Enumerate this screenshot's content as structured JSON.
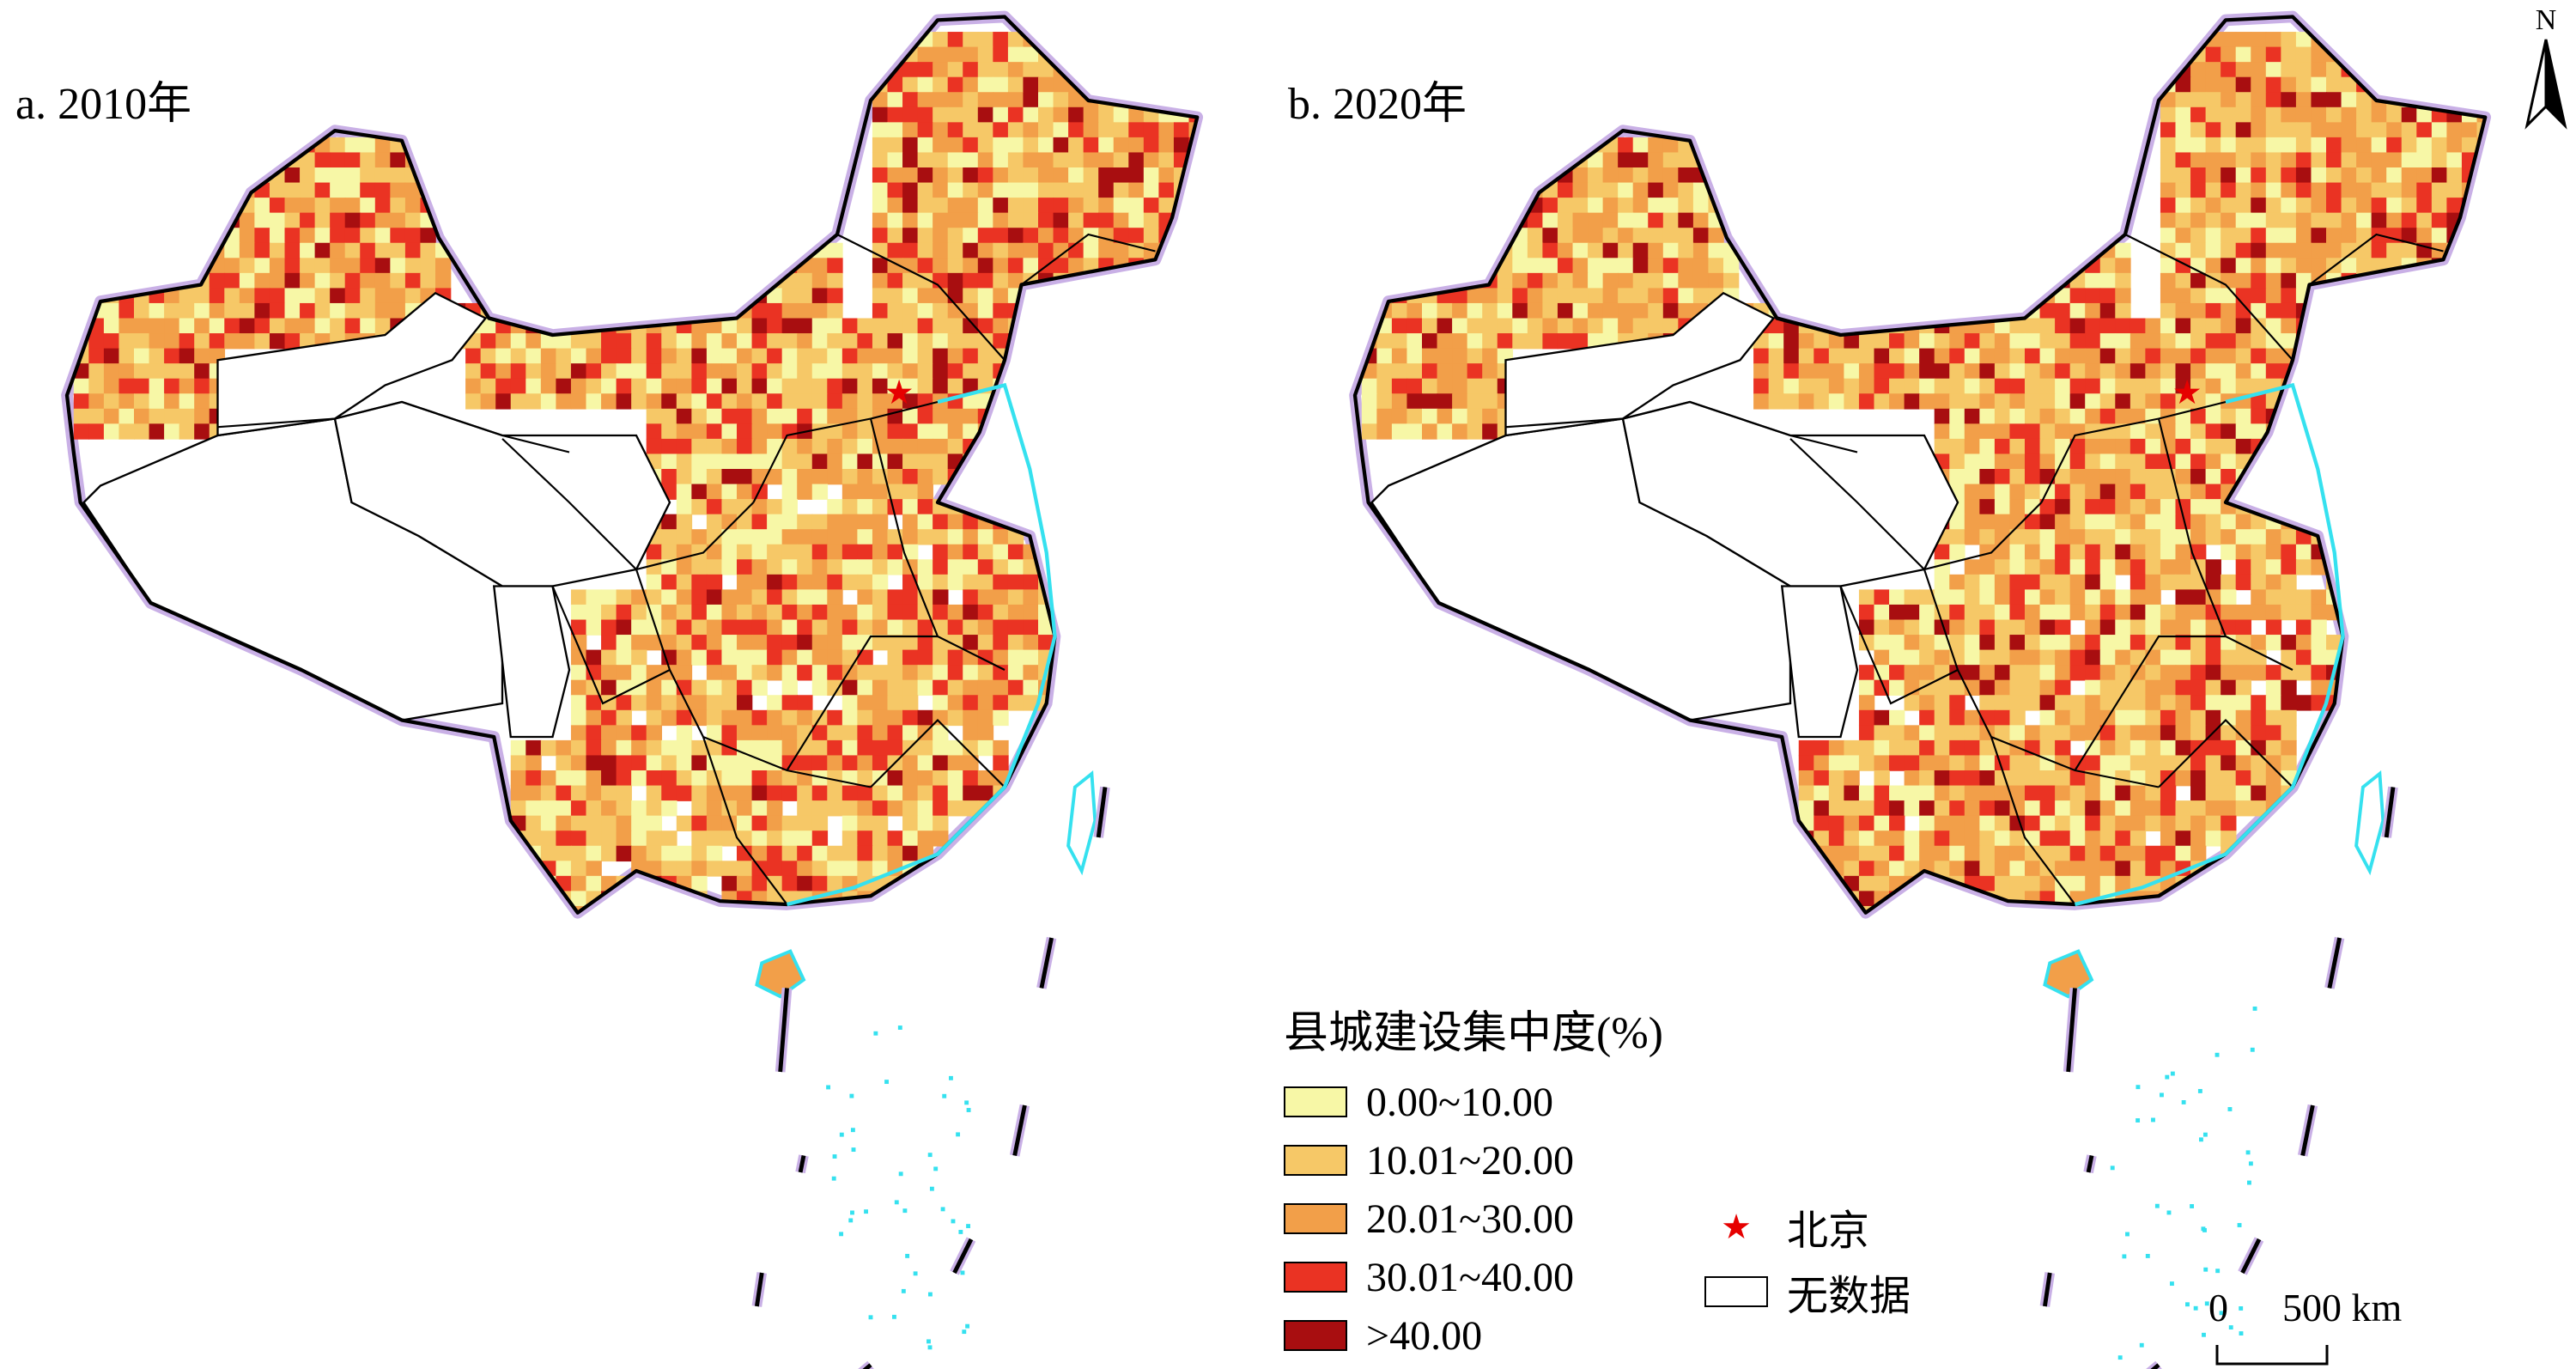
{
  "panels": [
    {
      "title": "a. 2010年"
    },
    {
      "title": "b. 2020年"
    }
  ],
  "legend": {
    "title": "县城建设集中度(%)",
    "classes": [
      {
        "label": "0.00~10.00",
        "color": "#f7f7a6"
      },
      {
        "label": "10.01~20.00",
        "color": "#f6c867"
      },
      {
        "label": "20.01~30.00",
        "color": "#f29f49"
      },
      {
        "label": "30.01~40.00",
        "color": "#ea3323"
      },
      {
        "label": ">40.00",
        "color": "#a80e10"
      }
    ],
    "symbols": [
      {
        "label": "北京",
        "icon": "red-star-icon",
        "color": "#e60000"
      },
      {
        "label": "无数据",
        "icon": "empty-box-icon",
        "color": "#ffffff"
      }
    ]
  },
  "north_arrow": {
    "label": "N"
  },
  "scale_bar": {
    "start": "0",
    "end": "500 km"
  },
  "colors": {
    "outer_halo": "#c9b0e6",
    "coast": "#35e1ef",
    "border": "#000000",
    "nodata": "#ffffff"
  }
}
